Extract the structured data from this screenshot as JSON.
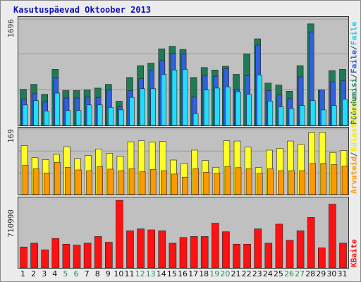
{
  "title": "Kasutuspäevad Oktoober 2013",
  "colors": {
    "page_views": "#1f7a55",
    "hits": "#2f60e0",
    "files": "#22ddff",
    "visitors": "#ffff22",
    "visits": "#ff9900",
    "bytes": "#ff1111",
    "weekday_label": "#111111",
    "weekend_label": "#2e8b57"
  },
  "chart_data": [
    {
      "type": "bar",
      "panel": "top",
      "y_max_label": "1696",
      "ylim": [
        0,
        1696
      ],
      "grid": true,
      "legend_placement": "right-vertical",
      "categories": [
        "1",
        "2",
        "3",
        "4",
        "5",
        "6",
        "7",
        "8",
        "9",
        "10",
        "11",
        "12",
        "13",
        "14",
        "15",
        "16",
        "17",
        "18",
        "19",
        "20",
        "21",
        "22",
        "23",
        "24",
        "25",
        "26",
        "27",
        "28",
        "29",
        "30",
        "31"
      ],
      "series": [
        {
          "name": "Pöördumisi",
          "values": [
            580,
            660,
            500,
            900,
            560,
            560,
            570,
            600,
            660,
            390,
            770,
            960,
            1000,
            1230,
            1270,
            1220,
            770,
            930,
            890,
            950,
            820,
            1150,
            1390,
            680,
            650,
            550,
            960,
            1630,
            570,
            880,
            900
          ]
        },
        {
          "name": "Faile",
          "values": [
            420,
            510,
            380,
            760,
            440,
            440,
            460,
            450,
            570,
            300,
            560,
            750,
            890,
            1040,
            1160,
            1150,
            460,
            800,
            790,
            910,
            580,
            800,
            1290,
            560,
            490,
            430,
            780,
            1500,
            570,
            700,
            720
          ]
        },
        {
          "name": "Faile",
          "values": [
            330,
            400,
            230,
            520,
            240,
            240,
            330,
            330,
            290,
            250,
            450,
            590,
            590,
            820,
            890,
            900,
            190,
            570,
            600,
            620,
            540,
            500,
            810,
            390,
            300,
            270,
            320,
            400,
            250,
            320,
            420
          ]
        }
      ]
    },
    {
      "type": "bar",
      "panel": "middle",
      "y_max_label": "169",
      "ylim": [
        0,
        169
      ],
      "grid": true,
      "legend_placement": "right-vertical",
      "categories": [
        "1",
        "2",
        "3",
        "4",
        "5",
        "6",
        "7",
        "8",
        "9",
        "10",
        "11",
        "12",
        "13",
        "14",
        "15",
        "16",
        "17",
        "18",
        "19",
        "20",
        "21",
        "22",
        "23",
        "24",
        "25",
        "26",
        "27",
        "28",
        "29",
        "30",
        "31"
      ],
      "series": [
        {
          "name": "Külastajaid",
          "values": [
            129,
            97,
            92,
            106,
            126,
            95,
            103,
            120,
            109,
            101,
            139,
            142,
            138,
            140,
            91,
            82,
            117,
            90,
            72,
            142,
            141,
            125,
            71,
            117,
            122,
            141,
            132,
            164,
            164,
            111,
            116
          ]
        },
        {
          "name": "Arvuteid",
          "values": [
            77,
            68,
            57,
            85,
            72,
            65,
            63,
            74,
            67,
            63,
            68,
            60,
            66,
            63,
            54,
            46,
            68,
            59,
            56,
            74,
            71,
            68,
            56,
            68,
            63,
            63,
            63,
            82,
            82,
            79,
            75
          ]
        }
      ]
    },
    {
      "type": "bar",
      "panel": "bottom",
      "y_max_label": "710990",
      "ylim": [
        0,
        710990
      ],
      "grid": false,
      "legend_placement": "right-vertical",
      "categories": [
        "1",
        "2",
        "3",
        "4",
        "5",
        "6",
        "7",
        "8",
        "9",
        "10",
        "11",
        "12",
        "13",
        "14",
        "15",
        "16",
        "17",
        "18",
        "19",
        "20",
        "21",
        "22",
        "23",
        "24",
        "25",
        "26",
        "27",
        "28",
        "29",
        "30",
        "31"
      ],
      "series": [
        {
          "name": "KBaite",
          "values": [
            220000,
            260000,
            190000,
            310000,
            250000,
            240000,
            260000,
            330000,
            270000,
            710000,
            390000,
            410000,
            400000,
            390000,
            260000,
            320000,
            330000,
            330000,
            470000,
            380000,
            250000,
            250000,
            410000,
            260000,
            460000,
            290000,
            390000,
            530000,
            210000,
            670000,
            260000
          ]
        }
      ]
    }
  ],
  "legends": {
    "top": [
      "Pöördumisi",
      "Faile",
      "Faile"
    ],
    "middle": [
      "Arvuteid",
      "Külastajaid"
    ],
    "bottom": [
      "KBaite"
    ],
    "separator": "/"
  },
  "x_labels": [
    {
      "label": "1",
      "weekend": false
    },
    {
      "label": "2",
      "weekend": false
    },
    {
      "label": "3",
      "weekend": false
    },
    {
      "label": "4",
      "weekend": false
    },
    {
      "label": "5",
      "weekend": true
    },
    {
      "label": "6",
      "weekend": true
    },
    {
      "label": "7",
      "weekend": false
    },
    {
      "label": "8",
      "weekend": false
    },
    {
      "label": "9",
      "weekend": false
    },
    {
      "label": "10",
      "weekend": false
    },
    {
      "label": "11",
      "weekend": false
    },
    {
      "label": "12",
      "weekend": true
    },
    {
      "label": "13",
      "weekend": true
    },
    {
      "label": "14",
      "weekend": false
    },
    {
      "label": "15",
      "weekend": false
    },
    {
      "label": "16",
      "weekend": false
    },
    {
      "label": "17",
      "weekend": false
    },
    {
      "label": "18",
      "weekend": false
    },
    {
      "label": "19",
      "weekend": true
    },
    {
      "label": "20",
      "weekend": true
    },
    {
      "label": "21",
      "weekend": false
    },
    {
      "label": "22",
      "weekend": false
    },
    {
      "label": "23",
      "weekend": false
    },
    {
      "label": "24",
      "weekend": false
    },
    {
      "label": "25",
      "weekend": false
    },
    {
      "label": "26",
      "weekend": true
    },
    {
      "label": "27",
      "weekend": true
    },
    {
      "label": "28",
      "weekend": false
    },
    {
      "label": "29",
      "weekend": false
    },
    {
      "label": "30",
      "weekend": false
    },
    {
      "label": "31",
      "weekend": false
    }
  ]
}
